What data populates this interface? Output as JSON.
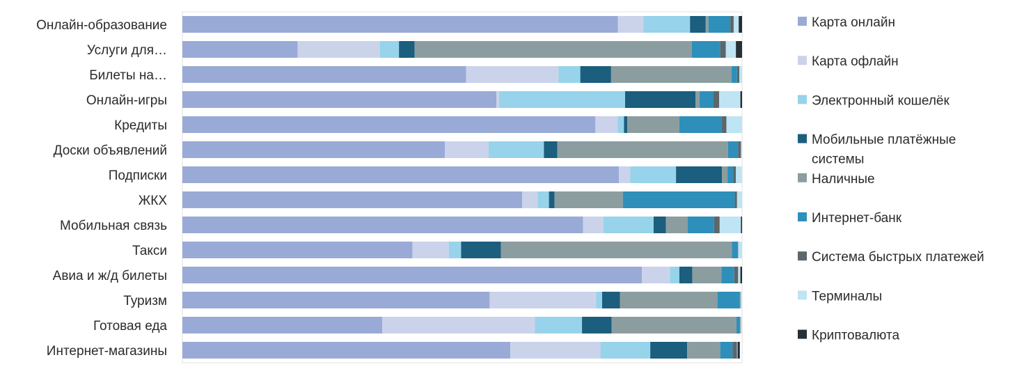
{
  "chart_data": {
    "type": "bar",
    "orientation": "horizontal",
    "stacked": "percent",
    "title": "",
    "xlabel": "",
    "ylabel": "",
    "xlim": [
      0,
      100
    ],
    "grid": false,
    "legend_position": "right",
    "categories": [
      "Онлайн-образование",
      "Услуги для…",
      "Билеты на…",
      "Онлайн-игры",
      "Кредиты",
      "Доски объявлений",
      "Подписки",
      "ЖКХ",
      "Мобильная связь",
      "Такси",
      "Авиа и ж/д билеты",
      "Туризм",
      "Готовая еда",
      "Интернет-магазины"
    ],
    "series": [
      {
        "name": "Карта онлайн",
        "color": "#9aaad6",
        "values": [
          77.8,
          20.6,
          50.7,
          56.1,
          73.8,
          46.9,
          78.0,
          60.7,
          71.6,
          41.1,
          82.1,
          54.9,
          35.7,
          58.6
        ]
      },
      {
        "name": "Карта офлайн",
        "color": "#cbd3ea",
        "values": [
          4.6,
          14.7,
          16.5,
          0.5,
          4.0,
          7.8,
          2.0,
          2.8,
          3.6,
          6.5,
          5.0,
          19.0,
          27.3,
          16.1
        ]
      },
      {
        "name": "Электронный кошелёк",
        "color": "#97d3ea",
        "values": [
          8.3,
          3.4,
          3.9,
          22.5,
          1.1,
          9.9,
          8.2,
          2.0,
          9.0,
          2.2,
          1.7,
          1.1,
          8.4,
          8.9
        ]
      },
      {
        "name": "Мобильные платёжные системы",
        "color": "#1b5e7e",
        "values": [
          2.8,
          2.8,
          5.5,
          12.6,
          0.6,
          2.4,
          8.2,
          1.0,
          2.2,
          7.1,
          2.3,
          3.2,
          5.3,
          6.6
        ]
      },
      {
        "name": "Наличные",
        "color": "#8c9da0",
        "values": [
          0.5,
          49.5,
          21.5,
          0.7,
          9.3,
          30.5,
          1.0,
          12.2,
          3.9,
          41.3,
          5.2,
          17.4,
          22.3,
          5.9
        ]
      },
      {
        "name": "Интернет-банк",
        "color": "#2e8fba",
        "values": [
          3.9,
          5.1,
          1.0,
          2.5,
          7.6,
          1.8,
          1.0,
          20.0,
          4.7,
          1.0,
          2.3,
          4.0,
          0.6,
          2.2
        ]
      },
      {
        "name": "Система быстрых платежей",
        "color": "#5c666b",
        "values": [
          0.6,
          1.0,
          0.4,
          1.0,
          0.8,
          0.5,
          0.5,
          0.4,
          1.0,
          0.1,
          0.7,
          0.1,
          0.1,
          0.8
        ]
      },
      {
        "name": "Терминалы",
        "color": "#bfe4f3",
        "values": [
          0.9,
          1.8,
          0.5,
          3.8,
          2.8,
          0.2,
          1.1,
          0.9,
          3.8,
          0.7,
          0.4,
          0.3,
          0.3,
          0.1
        ]
      },
      {
        "name": "Криптовалюта",
        "color": "#243036",
        "values": [
          0.6,
          1.1,
          0.0,
          0.3,
          0.0,
          0.0,
          0.0,
          0.0,
          0.2,
          0.0,
          0.3,
          0.0,
          0.0,
          0.4
        ]
      }
    ]
  }
}
